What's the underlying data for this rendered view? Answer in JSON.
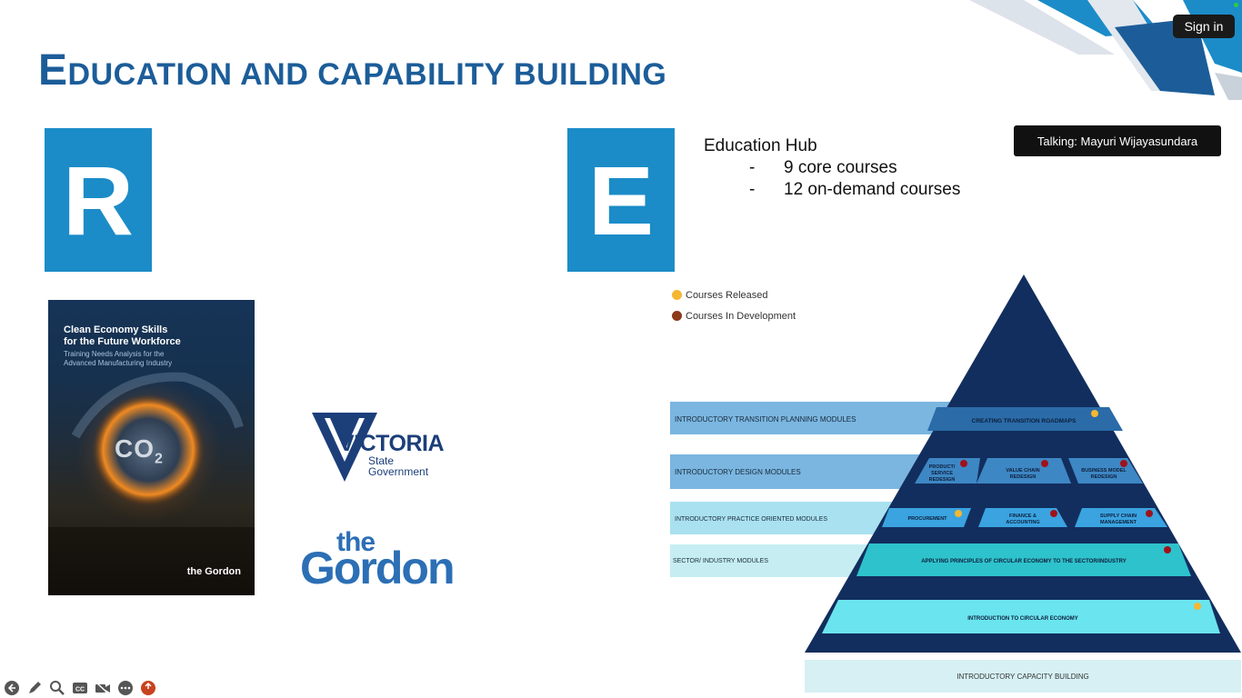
{
  "slide": {
    "title_first": "E",
    "title_rest": "DUCATION AND CAPABILITY BUILDING",
    "letter_r": "R",
    "letter_e": "E"
  },
  "window": {
    "sign_in_label": "Sign in",
    "talking_label": "Talking: Mayuri Wijayasundara"
  },
  "education_hub": {
    "heading": "Education Hub",
    "items": [
      {
        "dash": "-",
        "text": "9 core courses"
      },
      {
        "dash": "-",
        "text": "12 on-demand courses"
      }
    ]
  },
  "book": {
    "title_line1": "Clean Economy Skills",
    "title_line2": "for the Future Workforce",
    "sub_line1": "Training Needs Analysis for the",
    "sub_line2": "Advanced Manufacturing Industry",
    "co2": "CO",
    "co2_sub": "2",
    "logo": "the Gordon"
  },
  "logos": {
    "victoria_main": "VICTORIA",
    "victoria_line2": "State",
    "victoria_line3": "Government",
    "gordon_the": "the",
    "gordon_main": "Gordon"
  },
  "legend": [
    {
      "label": "Courses Released",
      "color": "#f5b731"
    },
    {
      "label": "Courses In Development",
      "color": "#8b3a1a"
    }
  ],
  "pyramid": {
    "side_labels": [
      "INTRODUCTORY TRANSITION PLANNING MODULES",
      "INTRODUCTORY DESIGN MODULES",
      "INTRODUCTORY PRACTICE ORIENTED MODULES",
      "SECTOR/ INDUSTRY MODULES"
    ],
    "tier1": "CREATING TRANSITION ROADMAPS",
    "tier2": [
      "PRODUCT/",
      "SERVICE",
      "REDESIGN",
      "VALUE CHAIN",
      "REDESIGN",
      "BUSINESS MODEL",
      "REDESIGN"
    ],
    "tier3": [
      "PROCUREMENT",
      "FINANCE &",
      "ACCOUNTING",
      "SUPPLY CHAIN",
      "MANAGEMENT"
    ],
    "tier4": "APPLYING PRINCIPLES OF CIRCULAR ECONOMY TO THE SECTOR/INDUSTRY",
    "tier5": "INTRODUCTION  TO CIRCULAR ECONOMY",
    "footer": "INTRODUCTORY CAPACITY BUILDING"
  },
  "toolbar": [
    {
      "icon": "back-arrow-icon"
    },
    {
      "icon": "pen-icon"
    },
    {
      "icon": "magnifier-icon"
    },
    {
      "icon": "cc-icon"
    },
    {
      "icon": "video-off-icon"
    },
    {
      "icon": "more-icon"
    },
    {
      "icon": "stop-icon"
    }
  ]
}
